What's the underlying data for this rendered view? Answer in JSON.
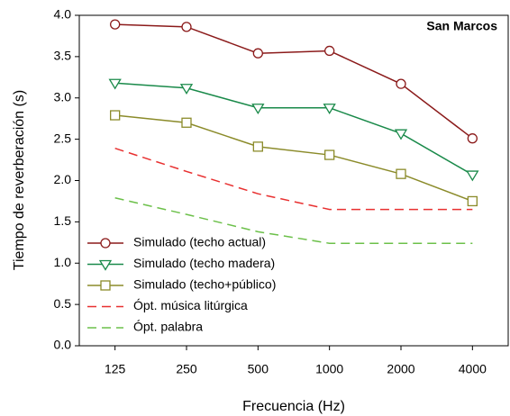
{
  "chart_data": {
    "type": "line",
    "annotation": "San Marcos",
    "x_label": "Frecuencia (Hz)",
    "y_label": "Tiempo de reverberación (s)",
    "categories": [
      "125",
      "250",
      "500",
      "1000",
      "2000",
      "4000"
    ],
    "series": [
      {
        "name": "Simulado (techo actual)",
        "color": "#8b1a1a",
        "marker": "circle",
        "dashed": false,
        "values": [
          3.89,
          3.86,
          3.54,
          3.57,
          3.17,
          2.51
        ]
      },
      {
        "name": "Simulado (techo madera)",
        "color": "#1a8a4a",
        "marker": "triangle-down",
        "dashed": false,
        "values": [
          3.18,
          3.12,
          2.88,
          2.88,
          2.57,
          2.07
        ]
      },
      {
        "name": "Simulado (techo+público)",
        "color": "#8b8b2a",
        "marker": "square",
        "dashed": false,
        "values": [
          2.79,
          2.7,
          2.41,
          2.31,
          2.08,
          1.75
        ]
      },
      {
        "name": "Ópt. música litúrgica",
        "color": "#e83030",
        "marker": "none",
        "dashed": true,
        "values": [
          2.39,
          2.11,
          1.84,
          1.65,
          1.65,
          1.65
        ]
      },
      {
        "name": "Ópt. palabra",
        "color": "#6cc04a",
        "marker": "none",
        "dashed": true,
        "values": [
          1.79,
          1.59,
          1.38,
          1.24,
          1.24,
          1.24
        ]
      }
    ],
    "ylim": [
      0,
      4
    ],
    "yticks": [
      {
        "value": 0,
        "label": "0.0"
      },
      0.5,
      {
        "value": 1,
        "label": "1.0"
      },
      1.5,
      {
        "value": 2,
        "label": "2.0"
      },
      2.5,
      {
        "value": 3,
        "label": "3.0"
      },
      3.5,
      {
        "value": 4,
        "label": "4.0"
      }
    ],
    "grid": false,
    "legend": "lower left"
  }
}
